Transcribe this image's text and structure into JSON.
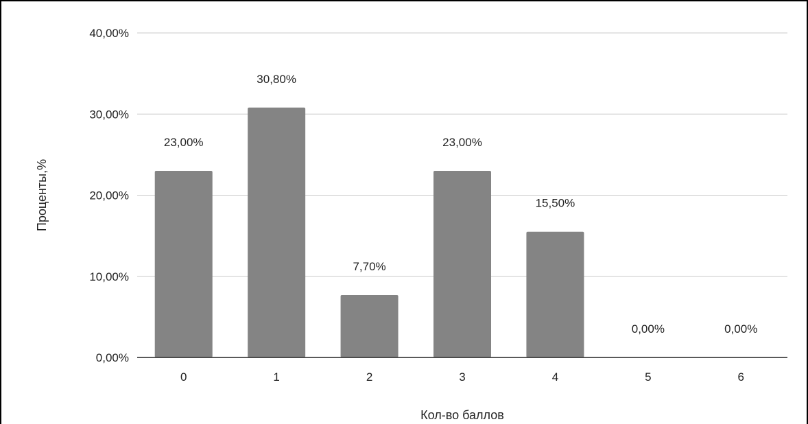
{
  "chart_data": {
    "type": "bar",
    "categories": [
      "0",
      "1",
      "2",
      "3",
      "4",
      "5",
      "6"
    ],
    "values": [
      23.0,
      30.8,
      7.7,
      23.0,
      15.5,
      0.0,
      0.0
    ],
    "data_labels": [
      "23,00%",
      "30,80%",
      "7,70%",
      "23,00%",
      "15,50%",
      "0,00%",
      "0,00%"
    ],
    "xlabel": "Кол-во баллов",
    "ylabel": "Проценты,%",
    "ylim": [
      0,
      40
    ],
    "yticks": [
      0,
      10,
      20,
      30,
      40
    ],
    "ytick_labels": [
      "0,00%",
      "10,00%",
      "20,00%",
      "30,00%",
      "40,00%"
    ],
    "grid": true,
    "bar_color": "#848484",
    "legend": "none"
  }
}
